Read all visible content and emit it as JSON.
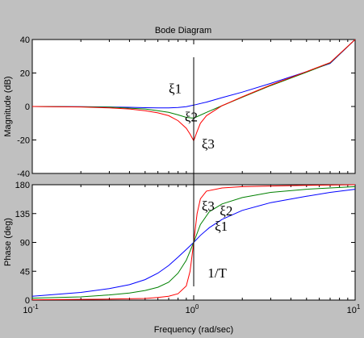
{
  "chart_data": {
    "type": "line",
    "title": "Bode Diagram",
    "xlabel": "Frequency  (rad/sec)",
    "xscale": "log",
    "xlim": [
      0.1,
      10
    ],
    "x_ticks": [
      {
        "base": "10",
        "exp": "-1"
      },
      {
        "base": "10",
        "exp": "0"
      },
      {
        "base": "10",
        "exp": "1"
      }
    ],
    "colors": {
      "xi1": "#0000ff",
      "xi2": "#008000",
      "xi3": "#ff0000",
      "marker": "#000000",
      "background": "#c0c0c0",
      "plot": "#ffffff"
    },
    "panels": [
      {
        "name": "magnitude",
        "ylabel": "Magnitude (dB)",
        "ylim": [
          -40,
          40
        ],
        "ytick_labels": [
          "40",
          "20",
          "0",
          "-20",
          "-40"
        ],
        "series": [
          {
            "key": "xi1",
            "x": [
              0.1,
              0.2,
              0.3,
              0.4,
              0.5,
              0.6,
              0.7,
              0.8,
              0.9,
              1.0,
              1.2,
              1.5,
              2,
              3,
              5,
              7,
              10
            ],
            "y": [
              0.0,
              -0.1,
              -0.3,
              -0.5,
              -0.7,
              -0.8,
              -0.8,
              -0.6,
              -0.1,
              0.8,
              2.6,
              5.3,
              8.6,
              13.8,
              20.8,
              25.7,
              40.0
            ]
          },
          {
            "key": "xi2",
            "x": [
              0.1,
              0.2,
              0.3,
              0.4,
              0.5,
              0.6,
              0.7,
              0.8,
              0.9,
              1.0,
              1.2,
              1.5,
              2,
              3,
              5,
              7,
              10
            ],
            "y": [
              0.0,
              -0.2,
              -0.4,
              -1.0,
              -1.5,
              -2.5,
              -3.5,
              -5.0,
              -6.5,
              -7.0,
              -3.5,
              0.5,
              5.5,
              12.5,
              20.5,
              26.0,
              40.0
            ]
          },
          {
            "key": "xi3",
            "x": [
              0.1,
              0.2,
              0.3,
              0.4,
              0.5,
              0.6,
              0.7,
              0.8,
              0.9,
              0.95,
              1.0,
              1.05,
              1.1,
              1.2,
              1.5,
              2,
              3,
              5,
              7,
              10
            ],
            "y": [
              0.0,
              -0.3,
              -0.8,
              -1.5,
              -2.5,
              -3.8,
              -5.5,
              -8.5,
              -13.0,
              -16.5,
              -20.5,
              -15.0,
              -10.0,
              -5.5,
              0.5,
              5.8,
              12.8,
              20.8,
              26.2,
              40.0
            ]
          }
        ],
        "labels": [
          {
            "text": "ξ1",
            "x": 0.7,
            "y": 8
          },
          {
            "text": "ξ2",
            "x": 0.88,
            "y": -9
          },
          {
            "text": "ξ3",
            "x": 1.12,
            "y": -25
          }
        ]
      },
      {
        "name": "phase",
        "ylabel": "Phase (deg)",
        "ylim": [
          0,
          180
        ],
        "ytick_labels": [
          "180",
          "135",
          "90",
          "45",
          "0"
        ],
        "series": [
          {
            "key": "xi1",
            "x": [
              0.1,
              0.2,
              0.3,
              0.4,
              0.5,
              0.6,
              0.7,
              0.8,
              0.9,
              1.0,
              1.1,
              1.25,
              1.5,
              2,
              3,
              5,
              7,
              10
            ],
            "y": [
              6,
              12,
              18,
              24,
              32,
              42,
              54,
              67,
              79,
              90,
              101,
              113,
              126,
              140,
              152,
              162,
              168,
              173
            ]
          },
          {
            "key": "xi2",
            "x": [
              0.1,
              0.2,
              0.3,
              0.4,
              0.5,
              0.6,
              0.7,
              0.8,
              0.9,
              1.0,
              1.1,
              1.25,
              1.5,
              2,
              3,
              5,
              7,
              10
            ],
            "y": [
              3,
              5,
              8,
              11,
              15,
              20,
              28,
              42,
              62,
              90,
              118,
              138,
              150,
              160,
              168,
              173,
              175,
              177
            ]
          },
          {
            "key": "xi3",
            "x": [
              0.1,
              0.3,
              0.5,
              0.6,
              0.7,
              0.8,
              0.9,
              0.95,
              1.0,
              1.05,
              1.1,
              1.2,
              1.5,
              2,
              3,
              5,
              10
            ],
            "y": [
              0.5,
              1.5,
              2.5,
              4,
              6,
              10,
              22,
              45,
              90,
              135,
              158,
              170,
              175,
              177,
              178,
              179,
              180
            ]
          }
        ],
        "labels": [
          {
            "text": "ξ3",
            "x": 1.12,
            "y": 140
          },
          {
            "text": "ξ2",
            "x": 1.45,
            "y": 132
          },
          {
            "text": "ξ1",
            "x": 1.35,
            "y": 108
          },
          {
            "text": "1/T",
            "x": 1.22,
            "y": 35
          }
        ]
      }
    ],
    "marker_x": 1.0
  }
}
